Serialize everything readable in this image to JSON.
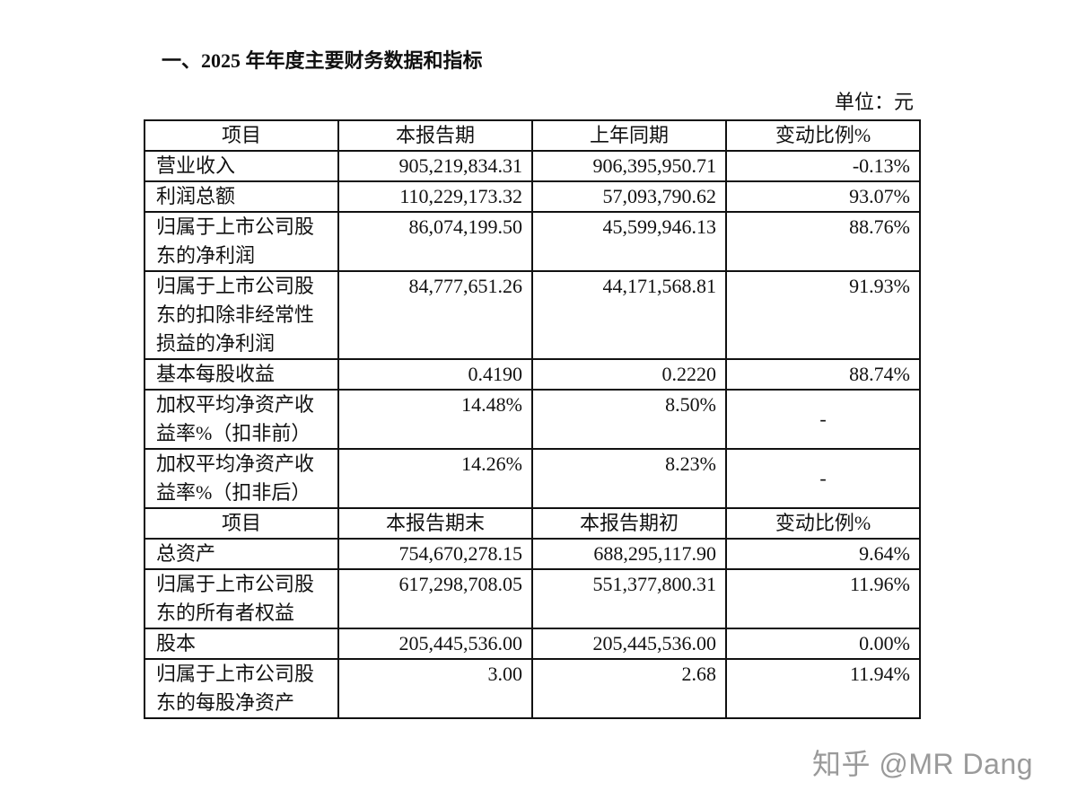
{
  "title": "一、2025 年年度主要财务数据和指标",
  "unit": "单位：元",
  "watermark": "知乎 @MR Dang",
  "table": {
    "rows": [
      {
        "type": "header",
        "cells": [
          [
            "项目"
          ],
          [
            "本报告期"
          ],
          [
            "上年同期"
          ],
          [
            "变动比例%"
          ]
        ]
      },
      {
        "cells": [
          [
            "营业收入"
          ],
          [
            "905,219,834.31"
          ],
          [
            "906,395,950.71"
          ],
          [
            "-0.13%"
          ]
        ]
      },
      {
        "cells": [
          [
            "利润总额"
          ],
          [
            "110,229,173.32"
          ],
          [
            "57,093,790.62"
          ],
          [
            "93.07%"
          ]
        ]
      },
      {
        "cells": [
          [
            "归属于上市公司股",
            "东的净利润"
          ],
          [
            "86,074,199.50"
          ],
          [
            "45,599,946.13"
          ],
          [
            "88.76%"
          ]
        ]
      },
      {
        "cells": [
          [
            "归属于上市公司股",
            "东的扣除非经常性",
            "损益的净利润"
          ],
          [
            "84,777,651.26"
          ],
          [
            "44,171,568.81"
          ],
          [
            "91.93%"
          ]
        ]
      },
      {
        "cells": [
          [
            "基本每股收益"
          ],
          [
            "0.4190"
          ],
          [
            "0.2220"
          ],
          [
            "88.74%"
          ]
        ]
      },
      {
        "cells": [
          [
            "加权平均净资产收",
            "益率%（扣非前）"
          ],
          [
            "14.48%"
          ],
          [
            "8.50%"
          ],
          [
            "-"
          ]
        ]
      },
      {
        "cells": [
          [
            "加权平均净资产收",
            "益率%（扣非后）"
          ],
          [
            "14.26%"
          ],
          [
            "8.23%"
          ],
          [
            "-"
          ]
        ]
      },
      {
        "type": "header",
        "cells": [
          [
            "项目"
          ],
          [
            "本报告期末"
          ],
          [
            "本报告期初"
          ],
          [
            "变动比例%"
          ]
        ]
      },
      {
        "cells": [
          [
            "总资产"
          ],
          [
            "754,670,278.15"
          ],
          [
            "688,295,117.90"
          ],
          [
            "9.64%"
          ]
        ]
      },
      {
        "cells": [
          [
            "归属于上市公司股",
            "东的所有者权益"
          ],
          [
            "617,298,708.05"
          ],
          [
            "551,377,800.31"
          ],
          [
            "11.96%"
          ]
        ]
      },
      {
        "cells": [
          [
            "股本"
          ],
          [
            "205,445,536.00"
          ],
          [
            "205,445,536.00"
          ],
          [
            "0.00%"
          ]
        ]
      },
      {
        "cells": [
          [
            "归属于上市公司股",
            "东的每股净资产"
          ],
          [
            "3.00"
          ],
          [
            "2.68"
          ],
          [
            "11.94%"
          ]
        ]
      }
    ]
  }
}
